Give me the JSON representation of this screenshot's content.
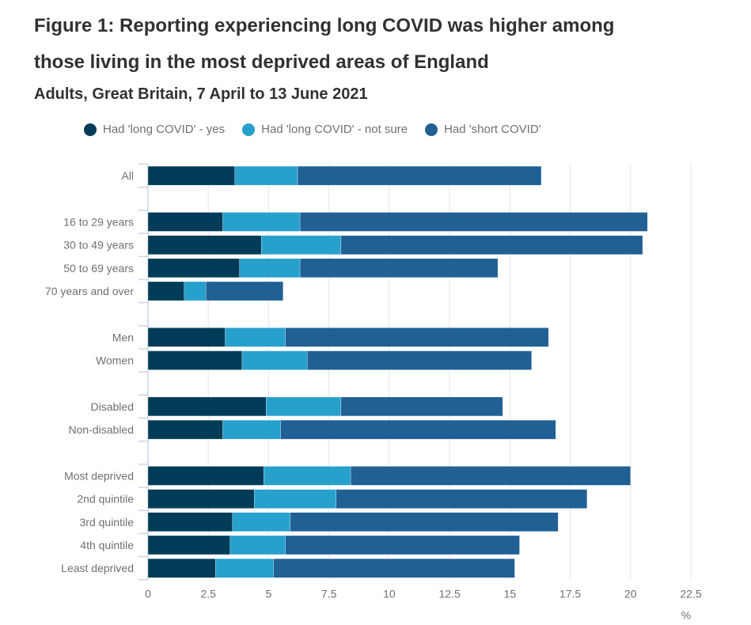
{
  "chart_data": {
    "type": "bar",
    "orientation": "horizontal",
    "stacked": true,
    "title": "Figure 1: Reporting experiencing long COVID was higher among those living in the most deprived areas of England",
    "subtitle": "Adults, Great Britain, 7 April to 13 June 2021",
    "xlabel": "%",
    "xlim": [
      0,
      22.5
    ],
    "xticks": [
      "0",
      "2.5",
      "5",
      "7.5",
      "10",
      "12.5",
      "15",
      "17.5",
      "20",
      "22.5"
    ],
    "grid": true,
    "legend_position": "top",
    "categories": [
      "All",
      "",
      "16 to 29 years",
      "30 to 49 years",
      "50 to 69 years",
      "70 years and over",
      "",
      "Men",
      "Women",
      "",
      "Disabled",
      "Non-disabled",
      "",
      "Most deprived",
      "2nd quintile",
      "3rd quintile",
      "4th quintile",
      "Least deprived"
    ],
    "series": [
      {
        "name": "Had 'long COVID' - yes",
        "color": "#003c57",
        "values": [
          3.6,
          null,
          3.1,
          4.7,
          3.8,
          1.5,
          null,
          3.2,
          3.9,
          null,
          4.9,
          3.1,
          null,
          4.8,
          4.4,
          3.5,
          3.4,
          2.8
        ]
      },
      {
        "name": "Had 'long COVID' - not sure",
        "color": "#27a0cc",
        "values": [
          2.6,
          null,
          3.2,
          3.3,
          2.5,
          0.9,
          null,
          2.5,
          2.7,
          null,
          3.1,
          2.4,
          null,
          3.6,
          3.4,
          2.4,
          2.3,
          2.4
        ]
      },
      {
        "name": "Had 'short COVID'",
        "color": "#206095",
        "values": [
          10.1,
          null,
          14.4,
          12.5,
          8.2,
          3.2,
          null,
          10.9,
          9.3,
          null,
          6.7,
          11.4,
          null,
          11.6,
          10.4,
          11.1,
          9.7,
          10.0
        ]
      }
    ]
  }
}
